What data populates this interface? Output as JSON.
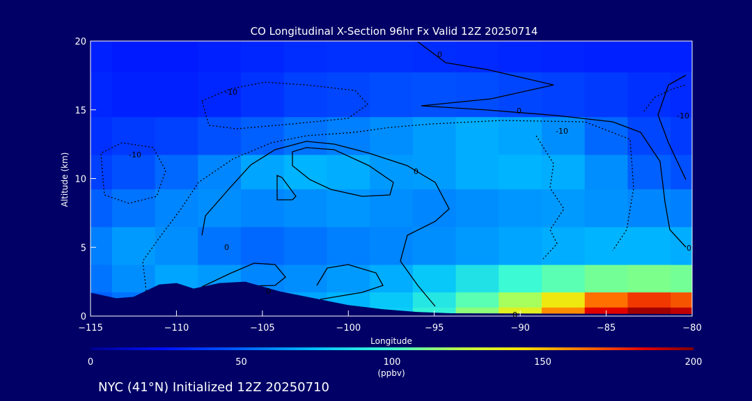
{
  "chart_data": {
    "type": "heatmap",
    "title": "CO Longitudinal X-Section 96hr  Fx Valid 12Z 20250714",
    "xlabel": "Longitude",
    "ylabel": "Altitude (km)",
    "xlim": [
      -115,
      -80
    ],
    "ylim": [
      0,
      20
    ],
    "x_ticks": [
      -115,
      -110,
      -105,
      -100,
      -95,
      -90,
      -85,
      -80
    ],
    "x_tick_labels": [
      "−115",
      "−110",
      "−105",
      "−100",
      "−95",
      "−90",
      "−85",
      "−80"
    ],
    "y_ticks": [
      0,
      5,
      10,
      15,
      20
    ],
    "y_tick_labels": [
      "0",
      "5",
      "10",
      "15",
      "20"
    ],
    "field": "CO mixing ratio",
    "levels": [
      {
        "alt": 0.3,
        "ppbv": [
          45,
          50,
          55,
          60,
          62,
          65,
          70,
          80,
          95,
          115,
          135,
          160,
          185,
          195,
          190
        ]
      },
      {
        "alt": 1.0,
        "ppbv": [
          50,
          55,
          60,
          62,
          65,
          68,
          72,
          78,
          90,
          105,
          120,
          140,
          165,
          175,
          170
        ]
      },
      {
        "alt": 2.5,
        "ppbv": [
          55,
          62,
          68,
          65,
          60,
          62,
          65,
          70,
          78,
          88,
          98,
          105,
          110,
          112,
          110
        ]
      },
      {
        "alt": 5.0,
        "ppbv": [
          58,
          65,
          62,
          55,
          52,
          55,
          58,
          60,
          62,
          65,
          68,
          70,
          72,
          72,
          70
        ]
      },
      {
        "alt": 8.0,
        "ppbv": [
          50,
          55,
          60,
          62,
          60,
          62,
          64,
          62,
          60,
          62,
          64,
          65,
          63,
          60,
          58
        ]
      },
      {
        "alt": 10.5,
        "ppbv": [
          40,
          45,
          52,
          60,
          68,
          72,
          70,
          65,
          66,
          70,
          72,
          70,
          62,
          50,
          45
        ]
      },
      {
        "alt": 13.0,
        "ppbv": [
          35,
          38,
          40,
          45,
          50,
          55,
          58,
          62,
          66,
          70,
          68,
          62,
          52,
          42,
          38
        ]
      },
      {
        "alt": 16.0,
        "ppbv": [
          32,
          30,
          30,
          32,
          36,
          40,
          42,
          44,
          45,
          44,
          42,
          40,
          38,
          35,
          33
        ]
      },
      {
        "alt": 19.5,
        "ppbv": [
          30,
          28,
          28,
          30,
          32,
          34,
          35,
          35,
          34,
          33,
          32,
          31,
          30,
          30,
          30
        ]
      }
    ],
    "level_lons": [
      -115,
      -112.5,
      -110,
      -107.5,
      -105,
      -102.5,
      -100,
      -97.5,
      -95,
      -92.5,
      -90,
      -87.5,
      -85,
      -82.5,
      -80
    ],
    "terrain_km": [
      [
        -115,
        1.7
      ],
      [
        -113.5,
        1.3
      ],
      [
        -112.5,
        1.4
      ],
      [
        -111,
        2.3
      ],
      [
        -110,
        2.4
      ],
      [
        -109,
        2.0
      ],
      [
        -107.5,
        2.4
      ],
      [
        -106,
        2.5
      ],
      [
        -104,
        1.8
      ],
      [
        -102,
        1.3
      ],
      [
        -100,
        0.8
      ],
      [
        -98,
        0.5
      ],
      [
        -96,
        0.3
      ],
      [
        -94,
        0.2
      ],
      [
        -80,
        0.15
      ]
    ],
    "contour_labels": [
      "-10",
      "-10",
      "-10",
      "-10",
      "0",
      "0",
      "0",
      "0",
      "0",
      "0",
      "0"
    ],
    "colorbar": {
      "min": 0,
      "max": 200,
      "ticks": [
        "0",
        "50",
        "100",
        "150",
        "200"
      ],
      "unit": "(ppbv)"
    }
  },
  "footer": {
    "text": "NYC (41°N) Initialized 12Z 20250710"
  }
}
